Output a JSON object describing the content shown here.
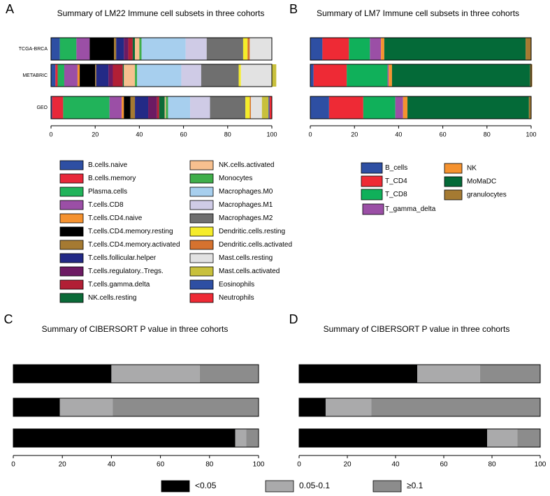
{
  "chart_data": [
    {
      "type": "stacked-bar",
      "panel": "A",
      "title": "Summary of LM22 Immune cell subsets in three cohorts",
      "categories": [
        "TCGA-BRCA",
        "METABRIC",
        "GEO"
      ],
      "xlim": [
        0,
        100
      ],
      "xticks": [
        0,
        20,
        40,
        60,
        80,
        100
      ],
      "series": [
        {
          "name": "B.cells.naive",
          "color": "#2e4fa3",
          "values": [
            4,
            2,
            0.5
          ]
        },
        {
          "name": "B.cells.memory",
          "color": "#e8283a",
          "values": [
            0,
            1,
            5
          ]
        },
        {
          "name": "Plasma.cells",
          "color": "#21b35a",
          "values": [
            7.5,
            3,
            21
          ]
        },
        {
          "name": "T.cells.CD8",
          "color": "#9b4fa6",
          "values": [
            6,
            6,
            5.5
          ]
        },
        {
          "name": "T.cells.CD4.naive",
          "color": "#f5922f",
          "values": [
            0,
            1,
            1
          ]
        },
        {
          "name": "T.cells.CD4.memory.resting",
          "color": "#000000",
          "values": [
            11,
            7,
            3
          ]
        },
        {
          "name": "T.cells.CD4.memory.activated",
          "color": "#a57a32",
          "values": [
            1,
            0.5,
            2
          ]
        },
        {
          "name": "T.cells.follicular.helper",
          "color": "#232a86",
          "values": [
            3.5,
            5.5,
            6
          ]
        },
        {
          "name": "T.cells.regulatory..Tregs.",
          "color": "#6c1b63",
          "values": [
            2,
            2,
            4
          ]
        },
        {
          "name": "T.cells.gamma.delta",
          "color": "#b11f35",
          "values": [
            2,
            4.5,
            1
          ]
        },
        {
          "name": "NK.cells.resting",
          "color": "#0b6a38",
          "values": [
            1,
            0.5,
            2.5
          ]
        },
        {
          "name": "NK.cells.activated",
          "color": "#f7c08f",
          "values": [
            2,
            5,
            0.5
          ]
        },
        {
          "name": "Monocytes",
          "color": "#3fae4a",
          "values": [
            1,
            1,
            1
          ]
        },
        {
          "name": "Macrophages.M0",
          "color": "#a7cfee",
          "values": [
            20,
            20,
            10
          ]
        },
        {
          "name": "Macrophages.M1",
          "color": "#cfcbe6",
          "values": [
            9.5,
            9,
            9
          ]
        },
        {
          "name": "Macrophages.M2",
          "color": "#6f6f6f",
          "values": [
            16.5,
            17,
            16
          ]
        },
        {
          "name": "Dendritic.cells.resting",
          "color": "#f5ec2a",
          "values": [
            2,
            1,
            2
          ]
        },
        {
          "name": "Dendritic.cells.activated",
          "color": "#d5722f",
          "values": [
            1,
            0,
            0.5
          ]
        },
        {
          "name": "Mast.cells.resting",
          "color": "#e2e2e2",
          "values": [
            10,
            14,
            5
          ]
        },
        {
          "name": "Mast.cells.activated",
          "color": "#c8c03c",
          "values": [
            0,
            2,
            3
          ]
        },
        {
          "name": "Eosinophils",
          "color": "#2e4fa3",
          "values": [
            0,
            0,
            0.5
          ]
        },
        {
          "name": "Neutrophils",
          "color": "#ee2a35",
          "values": [
            0,
            0,
            1
          ]
        }
      ]
    },
    {
      "type": "stacked-bar",
      "panel": "B",
      "title": "Summary of LM7 Immune cell subsets in three cohorts",
      "categories": [
        null,
        null,
        null
      ],
      "xlim": [
        0,
        100
      ],
      "xticks": [
        0,
        20,
        40,
        60,
        80,
        100
      ],
      "series": [
        {
          "name": "B_cells",
          "color": "#2e4fa3",
          "values": [
            5.5,
            1.5,
            8.5
          ]
        },
        {
          "name": "T_CD4",
          "color": "#ee2a35",
          "values": [
            12,
            15,
            15.5
          ]
        },
        {
          "name": "T_CD8",
          "color": "#10b05a",
          "values": [
            9.5,
            18.5,
            14.5
          ]
        },
        {
          "name": "T_gamma_delta",
          "color": "#9b4fa6",
          "values": [
            5,
            0.5,
            3.5
          ]
        },
        {
          "name": "NK",
          "color": "#f5922f",
          "values": [
            1.5,
            1.5,
            2
          ]
        },
        {
          "name": "MoMaDC",
          "color": "#046a38",
          "values": [
            64,
            62.5,
            55
          ]
        },
        {
          "name": "granulocytes",
          "color": "#a57a32",
          "values": [
            2.5,
            1,
            1
          ]
        }
      ]
    },
    {
      "type": "stacked-bar",
      "panel": "C",
      "title": "Summary of CIBERSORT P value in three cohorts",
      "categories": [
        null,
        null,
        null
      ],
      "xlim": [
        0,
        100
      ],
      "xticks": [
        0,
        20,
        40,
        60,
        80,
        100
      ],
      "series": [
        {
          "name": "<0.05",
          "color": "#000000",
          "values": [
            40,
            19,
            90.5
          ]
        },
        {
          "name": "0.05-0.1",
          "color": "#aaaaab",
          "values": [
            36,
            21.5,
            4.5
          ]
        },
        {
          "name": "≥0.1",
          "color": "#8c8c8c",
          "values": [
            24,
            59.5,
            5
          ]
        }
      ]
    },
    {
      "type": "stacked-bar",
      "panel": "D",
      "title": "Summary of CIBERSORT P value in three cohorts",
      "categories": [
        null,
        null,
        null
      ],
      "xlim": [
        0,
        100
      ],
      "xticks": [
        0,
        20,
        40,
        60,
        80,
        100
      ],
      "series": [
        {
          "color": "#000000",
          "values": [
            49,
            11,
            78
          ]
        },
        {
          "color": "#aaaaab",
          "values": [
            26,
            19,
            12.5
          ]
        },
        {
          "color": "#8c8c8c",
          "values": [
            25,
            70,
            9.5
          ]
        }
      ]
    }
  ]
}
